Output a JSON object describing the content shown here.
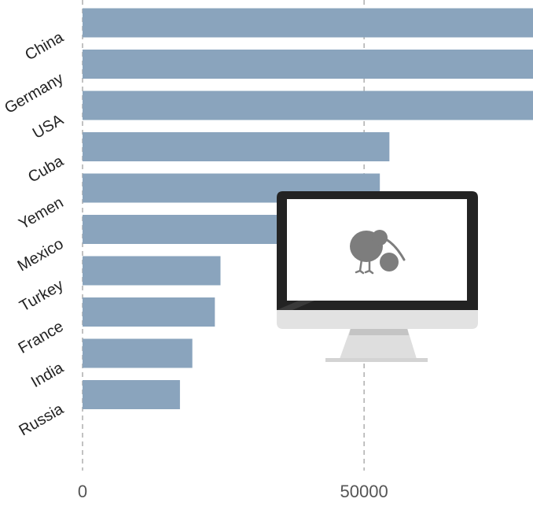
{
  "chart_data": {
    "type": "bar",
    "orientation": "horizontal",
    "categories": [
      "China",
      "Germany",
      "USA",
      "Cuba",
      "Yemen",
      "Mexico",
      "Turkey",
      "France",
      "India",
      "Russia"
    ],
    "values": [
      80000,
      80000,
      80000,
      54500,
      52800,
      36000,
      24500,
      23500,
      19500,
      17300
    ],
    "xlim": [
      0,
      80000
    ],
    "x_ticks": [
      "0",
      "50000"
    ],
    "x_tick_values": [
      0,
      50000
    ],
    "grid": true,
    "bar_color": "#8aa4bd",
    "title": "",
    "xlabel": "",
    "ylabel": ""
  },
  "overlay": {
    "icon": "monitor-with-kiwi-bird-icon"
  }
}
